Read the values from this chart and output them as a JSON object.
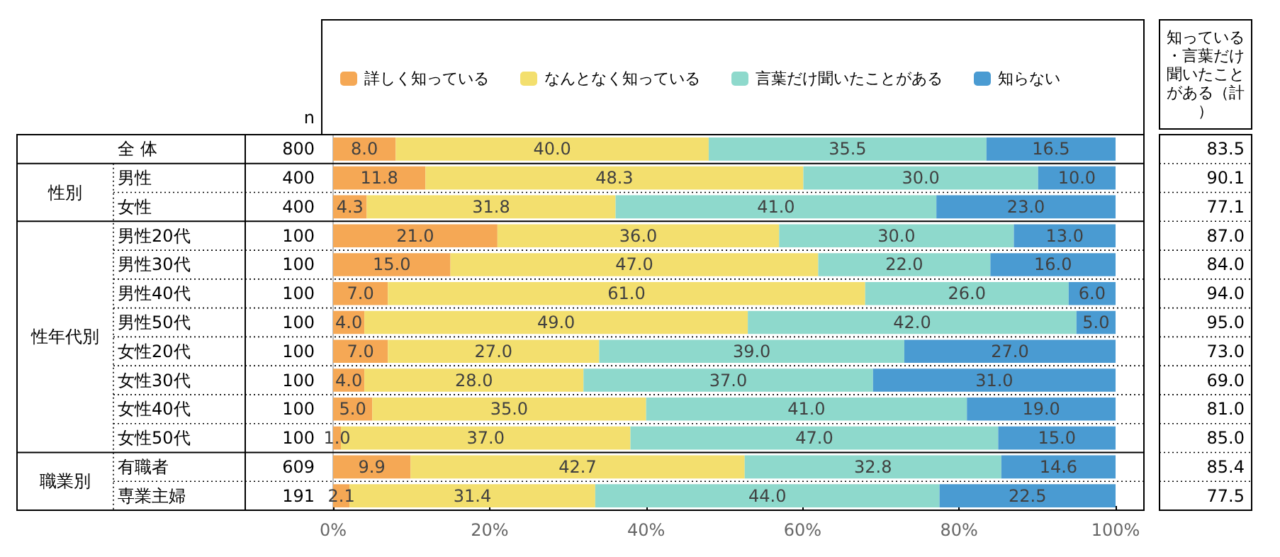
{
  "chart_data": [
    {
      "type": "bar",
      "orientation": "horizontal",
      "stacked": true,
      "legend": "top",
      "grid": false,
      "categories": [
        "全 体",
        "男性",
        "女性",
        "男性20代",
        "男性30代",
        "男性40代",
        "男性50代",
        "女性20代",
        "女性30代",
        "女性40代",
        "女性50代",
        "有職者",
        "専業主婦"
      ],
      "y2label": "n",
      "y2_categories": [
        "800",
        "400",
        "400",
        "100",
        "100",
        "100",
        "100",
        "100",
        "100",
        "100",
        "100",
        "609",
        "191"
      ],
      "series": [
        {
          "name": "詳しく知っている",
          "color": "#f5a855",
          "values": [
            8.0,
            11.8,
            4.3,
            21.0,
            15.0,
            7.0,
            4.0,
            7.0,
            4.0,
            5.0,
            1.0,
            9.9,
            2.1
          ],
          "value_labels": [
            "8.0",
            "11.8",
            "4.3",
            "21.0",
            "15.0",
            "7.0",
            "4.0",
            "7.0",
            "4.0",
            "5.0",
            "1.0",
            "9.9",
            "2.1"
          ]
        },
        {
          "name": "なんとなく知っている",
          "color": "#f3df6e",
          "values": [
            40.0,
            48.3,
            31.8,
            36.0,
            47.0,
            61.0,
            49.0,
            27.0,
            28.0,
            35.0,
            37.0,
            42.7,
            31.4
          ],
          "value_labels": [
            "40.0",
            "48.3",
            "31.8",
            "36.0",
            "47.0",
            "61.0",
            "49.0",
            "27.0",
            "28.0",
            "35.0",
            "37.0",
            "42.7",
            "31.4"
          ]
        },
        {
          "name": "言葉だけ聞いたことがある",
          "color": "#8ed9cc",
          "values": [
            35.5,
            30.0,
            41.0,
            30.0,
            22.0,
            26.0,
            42.0,
            39.0,
            37.0,
            41.0,
            47.0,
            32.8,
            44.0
          ],
          "value_labels": [
            "35.5",
            "30.0",
            "41.0",
            "30.0",
            "22.0",
            "26.0",
            "42.0",
            "39.0",
            "37.0",
            "41.0",
            "47.0",
            "32.8",
            "44.0"
          ]
        },
        {
          "name": "知らない",
          "color": "#4a9bd2",
          "values": [
            16.5,
            10.0,
            23.0,
            13.0,
            16.0,
            6.0,
            5.0,
            27.0,
            31.0,
            19.0,
            15.0,
            14.6,
            22.5
          ],
          "value_labels": [
            "16.5",
            "10.0",
            "23.0",
            "13.0",
            "16.0",
            "6.0",
            "5.0",
            "27.0",
            "31.0",
            "19.0",
            "15.0",
            "14.6",
            "22.5"
          ]
        }
      ],
      "xlim": [
        0,
        100
      ],
      "xticks": [
        {
          "value": 0,
          "label": "0%"
        },
        {
          "value": 20,
          "label": "20%"
        },
        {
          "value": 40,
          "label": "40%"
        },
        {
          "value": 60,
          "label": "60%"
        },
        {
          "value": 80,
          "label": "80%"
        },
        {
          "value": 100,
          "label": "100%"
        }
      ],
      "annotations": [
        "性別",
        "性年代別",
        "職業別"
      ]
    },
    {
      "type": "other",
      "title": "知っている・言葉だけ聞いたことがある（計）",
      "annotations": [
        "83.5",
        "90.1",
        "77.1",
        "87.0",
        "84.0",
        "94.0",
        "95.0",
        "73.0",
        "69.0",
        "81.0",
        "85.0",
        "85.4",
        "77.5"
      ]
    }
  ]
}
